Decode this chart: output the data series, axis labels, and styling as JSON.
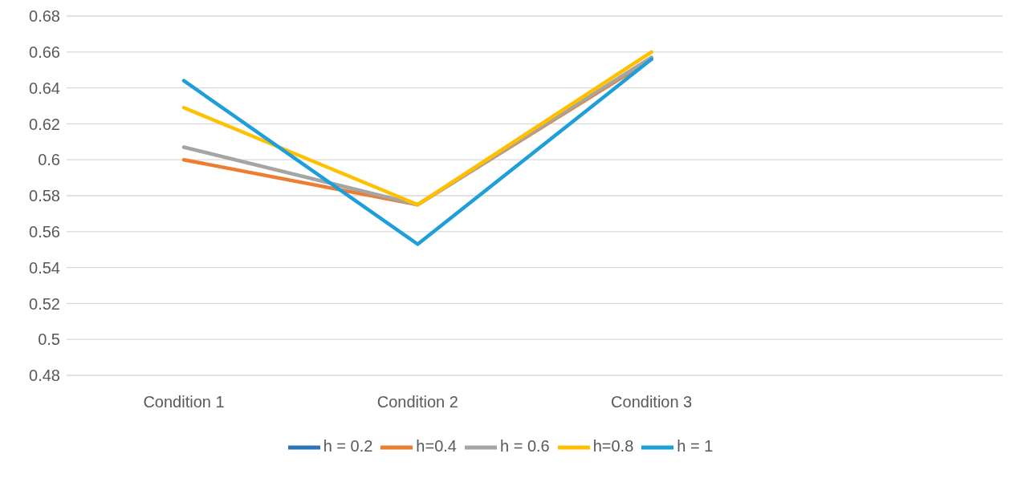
{
  "chart_data": {
    "type": "line",
    "categories": [
      "Condition 1",
      "Condition 2",
      "Condition 3",
      null
    ],
    "series": [
      {
        "name": "h = 0.2",
        "color": "#2e75b6",
        "values": [
          null,
          null,
          null,
          null
        ]
      },
      {
        "name": "h=0.4",
        "color": "#ed7d31",
        "values": [
          0.6,
          0.575,
          0.656,
          null
        ]
      },
      {
        "name": "h = 0.6",
        "color": "#a5a5a5",
        "values": [
          0.607,
          0.575,
          0.657,
          null
        ]
      },
      {
        "name": "h=0.8",
        "color": "#ffc000",
        "values": [
          0.629,
          0.575,
          0.66,
          null
        ]
      },
      {
        "name": "h = 1",
        "color": "#1f9fd9",
        "values": [
          0.644,
          0.553,
          0.656,
          null
        ]
      }
    ],
    "ylim": [
      0.48,
      0.68
    ],
    "yticks": [
      0.48,
      0.5,
      0.52,
      0.54,
      0.56,
      0.58,
      0.6,
      0.62,
      0.64,
      0.66,
      0.68
    ],
    "grid": "y",
    "legend": "bottom",
    "marker": "none",
    "line_style": "solid"
  }
}
